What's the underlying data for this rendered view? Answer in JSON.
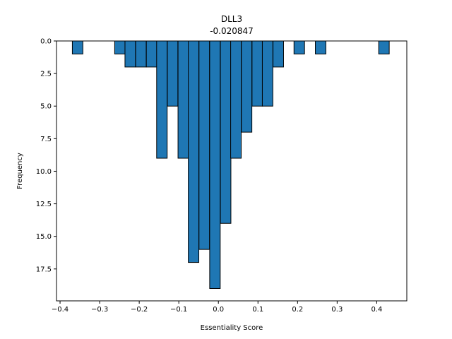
{
  "chart_data": {
    "type": "bar",
    "title": "DLL3",
    "subtitle": "-0.020847",
    "xlabel": "Essentiality Score",
    "ylabel": "Frequency",
    "y_inverted": true,
    "xlim": [
      -0.409,
      0.476
    ],
    "ylim": [
      0,
      19.95
    ],
    "bin_width": 0.0266,
    "x_ticks": [
      -0.4,
      -0.3,
      -0.2,
      -0.1,
      0.0,
      0.1,
      0.2,
      0.3,
      0.4
    ],
    "x_tick_labels": [
      "−0.4",
      "−0.3",
      "−0.2",
      "−0.1",
      "0.0",
      "0.1",
      "0.2",
      "0.3",
      "0.4"
    ],
    "y_ticks": [
      0,
      2.5,
      5,
      7.5,
      10,
      12.5,
      15,
      17.5
    ],
    "y_tick_labels": [
      "0.0",
      "2.5",
      "5.0",
      "7.5",
      "10.0",
      "12.5",
      "15.0",
      "17.5"
    ],
    "bin_left_edges": [
      -0.369,
      -0.262,
      -0.236,
      -0.209,
      -0.182,
      -0.156,
      -0.129,
      -0.102,
      -0.076,
      -0.049,
      -0.022,
      0.005,
      0.031,
      0.058,
      0.085,
      0.111,
      0.138,
      0.191,
      0.245,
      0.405
    ],
    "values": [
      1,
      1,
      2,
      2,
      2,
      9,
      5,
      9,
      17,
      16,
      19,
      14,
      9,
      7,
      5,
      5,
      2,
      1,
      1,
      1
    ],
    "bar_color": "#1f77b4",
    "edge_color": "#000000",
    "grid": false
  }
}
